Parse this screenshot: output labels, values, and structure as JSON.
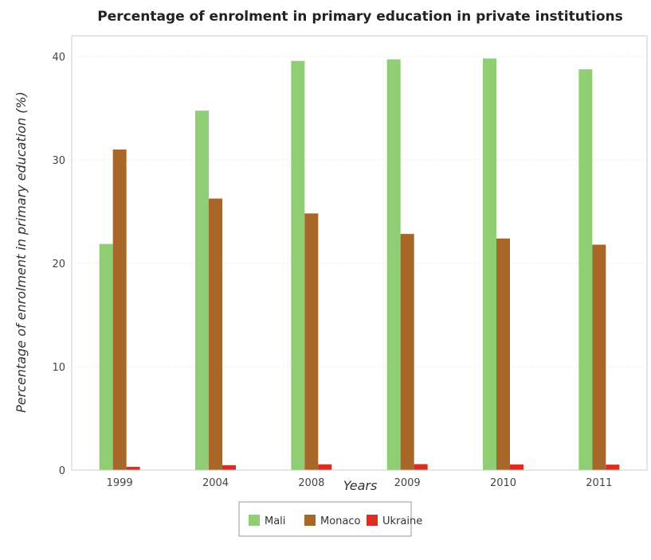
{
  "chart_data": {
    "type": "bar",
    "title": "Percentage of enrolment in primary education in private institutions",
    "xlabel": "Years",
    "ylabel": "Percentage of enrolment in primary education (%)",
    "categories": [
      "1999",
      "2004",
      "2008",
      "2009",
      "2010",
      "2011"
    ],
    "series": [
      {
        "name": "Mali",
        "color": "#8fce73",
        "values": [
          21.87,
          34.76,
          39.57,
          39.72,
          39.81,
          38.76
        ]
      },
      {
        "name": "Monaco",
        "color": "#a86628",
        "values": [
          31.0,
          26.26,
          24.82,
          22.84,
          22.4,
          21.8
        ]
      },
      {
        "name": "Ukraine",
        "color": "#dd2c21",
        "values": [
          0.32,
          0.48,
          0.56,
          0.58,
          0.55,
          0.53
        ]
      }
    ],
    "ylim": [
      0,
      42
    ],
    "yticks": [
      0,
      10,
      20,
      30,
      40
    ],
    "grid": true,
    "legend_position": "bottom"
  }
}
